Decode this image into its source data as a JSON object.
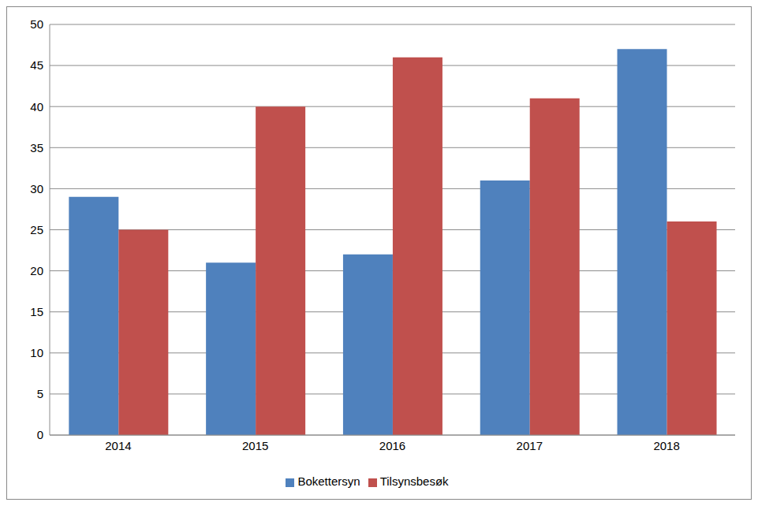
{
  "chart_data": {
    "type": "bar",
    "categories": [
      "2014",
      "2015",
      "2016",
      "2017",
      "2018"
    ],
    "series": [
      {
        "name": "Bokettersyn",
        "color": "#4f81bd",
        "values": [
          29,
          21,
          22,
          31,
          47
        ]
      },
      {
        "name": "Tilsynsbesøk",
        "color": "#c0504d",
        "values": [
          25,
          40,
          46,
          41,
          26
        ]
      }
    ],
    "ylim": [
      0,
      50
    ],
    "yticks": [
      0,
      5,
      10,
      15,
      20,
      25,
      30,
      35,
      40,
      45,
      50
    ],
    "grid": true,
    "legend": "bottom"
  }
}
